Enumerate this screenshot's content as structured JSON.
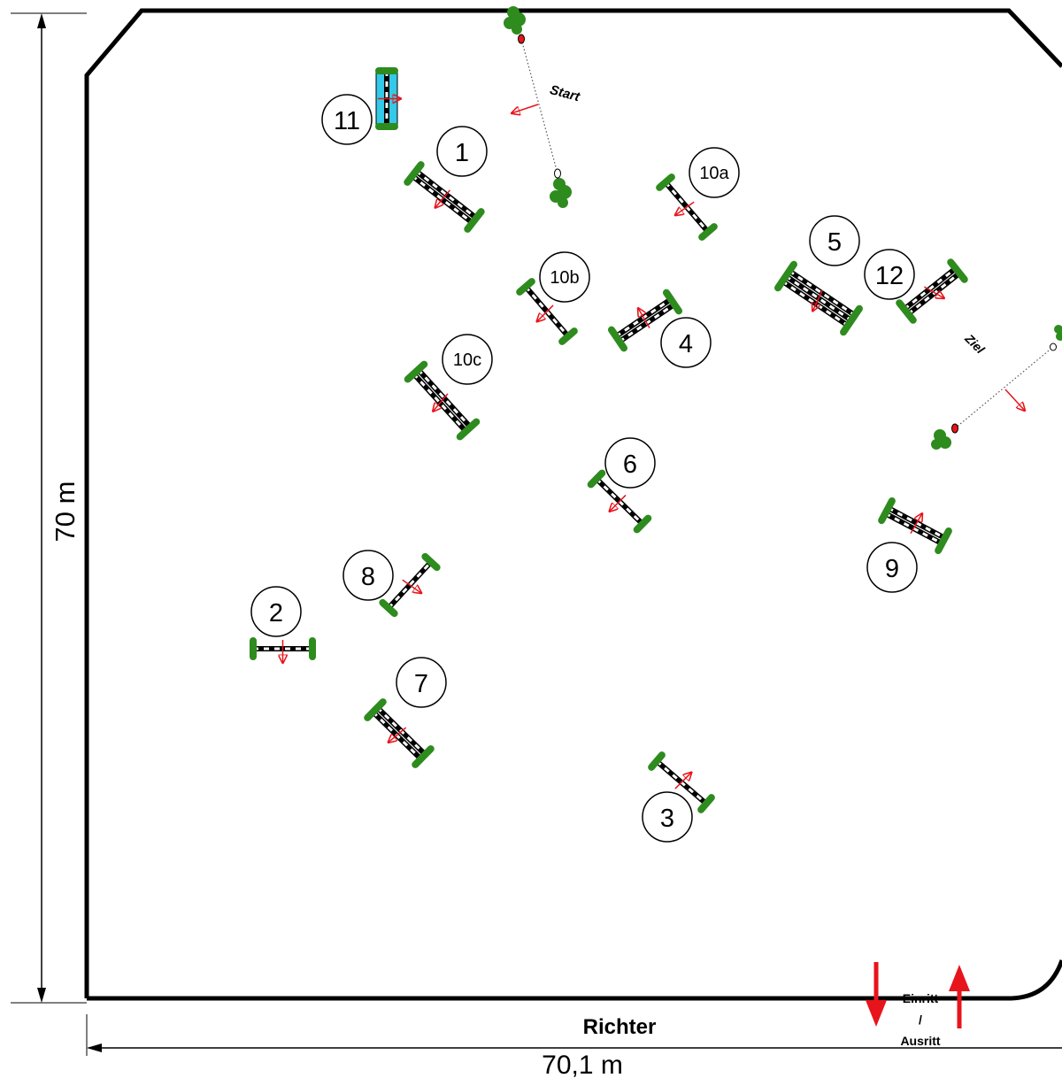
{
  "dimensions": {
    "height_label": "70 m",
    "width_label": "70,1 m"
  },
  "labels": {
    "judge": "Richter",
    "start": "Start",
    "finish": "Ziel",
    "entrance_line1": "Einritt",
    "entrance_line2": "/",
    "entrance_line3": "Ausritt"
  },
  "obstacles": [
    {
      "id": "1",
      "label": "1"
    },
    {
      "id": "2",
      "label": "2"
    },
    {
      "id": "3",
      "label": "3"
    },
    {
      "id": "4",
      "label": "4"
    },
    {
      "id": "5",
      "label": "5"
    },
    {
      "id": "6",
      "label": "6"
    },
    {
      "id": "7",
      "label": "7"
    },
    {
      "id": "8",
      "label": "8"
    },
    {
      "id": "9",
      "label": "9"
    },
    {
      "id": "10a",
      "label": "10a"
    },
    {
      "id": "10b",
      "label": "10b"
    },
    {
      "id": "10c",
      "label": "10c"
    },
    {
      "id": "11",
      "label": "11"
    },
    {
      "id": "12",
      "label": "12"
    }
  ],
  "colors": {
    "arena_border": "#000000",
    "plant": "#2e8b1e",
    "direction_arrow": "#e8141b",
    "water": "#33c9e8"
  }
}
